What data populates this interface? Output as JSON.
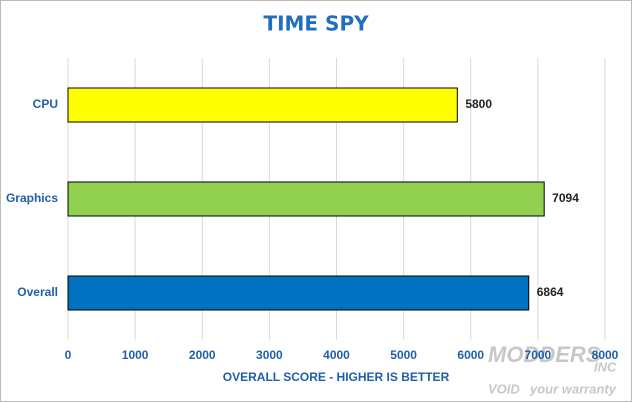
{
  "chart_data": {
    "type": "hbar",
    "title": "TIME SPY",
    "categories": [
      "CPU",
      "Graphics",
      "Overall"
    ],
    "values": [
      5800,
      7094,
      6864
    ],
    "colors": [
      "#ffff00",
      "#92d050",
      "#0070c0"
    ],
    "xlabel": "OVERALL SCORE - HIGHER IS BETTER",
    "xlim": [
      0,
      8000
    ],
    "xticks": [
      0,
      1000,
      2000,
      3000,
      4000,
      5000,
      6000,
      7000,
      8000
    ],
    "grid": true,
    "watermark": [
      "MODDERS",
      "INC",
      "VOID",
      "your warranty"
    ]
  }
}
